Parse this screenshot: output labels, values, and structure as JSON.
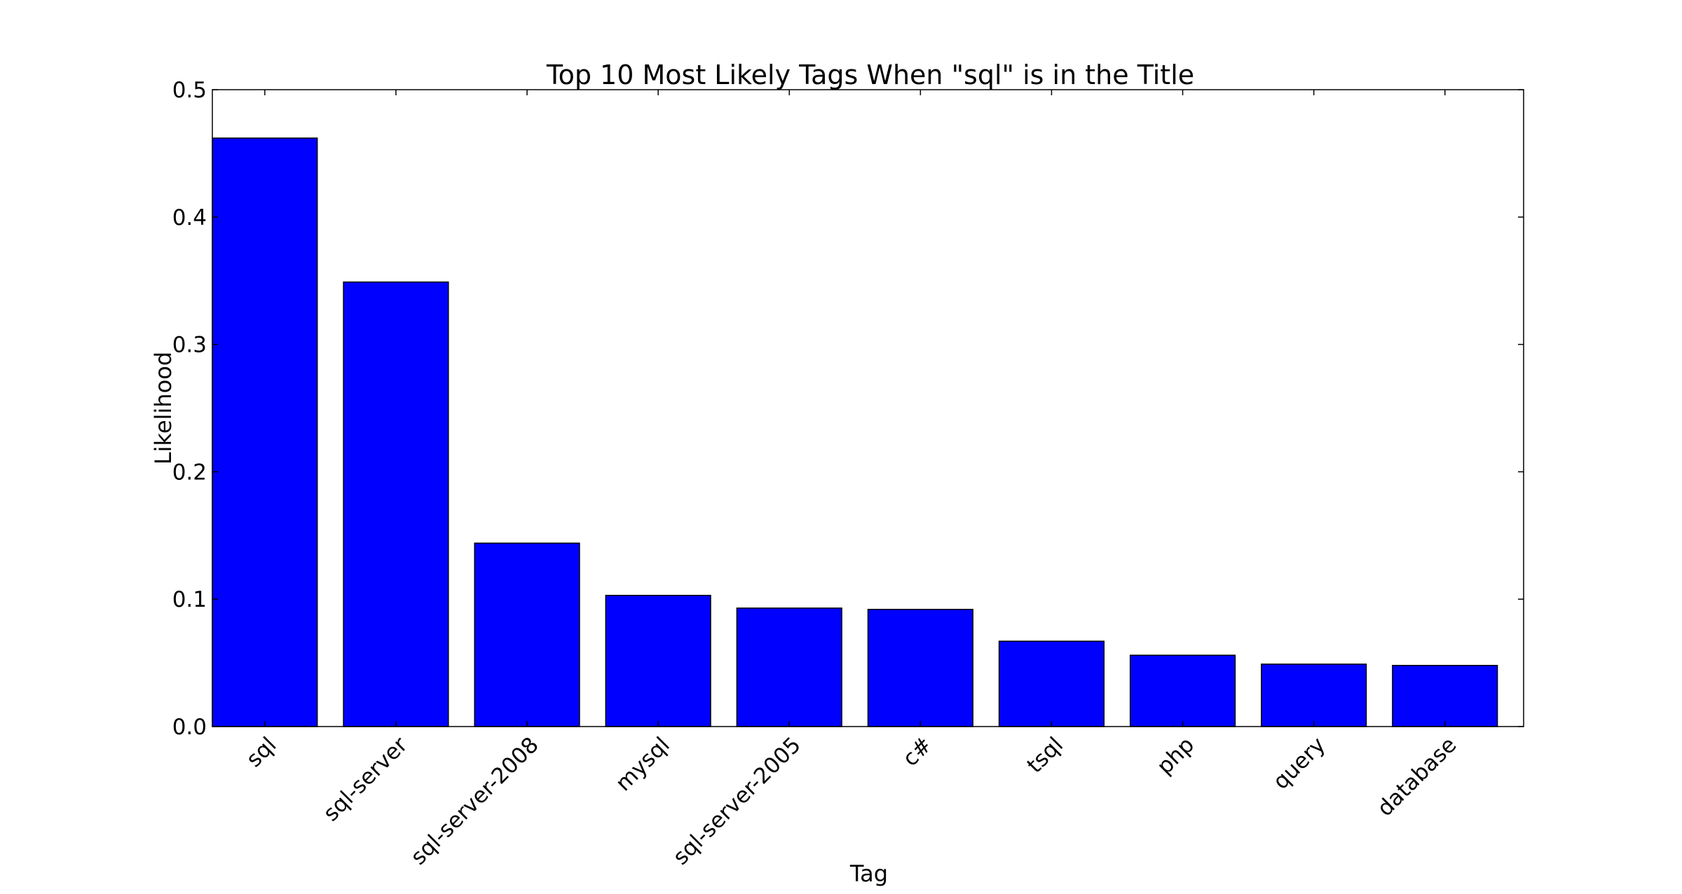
{
  "chart_data": {
    "type": "bar",
    "title": "Top 10 Most Likely Tags When \"sql\" is in the Title",
    "xlabel": "Tag",
    "ylabel": "Likelihood",
    "categories": [
      "sql",
      "sql-server",
      "sql-server-2008",
      "mysql",
      "sql-server-2005",
      "c#",
      "tsql",
      "php",
      "query",
      "database"
    ],
    "values": [
      0.462,
      0.349,
      0.144,
      0.103,
      0.093,
      0.092,
      0.067,
      0.056,
      0.049,
      0.048
    ],
    "ylim": [
      0,
      0.5
    ],
    "yticks": [
      "0.0",
      "0.1",
      "0.2",
      "0.3",
      "0.4",
      "0.5"
    ],
    "bar_color": "#0000ff",
    "grid": false,
    "legend": "none"
  }
}
